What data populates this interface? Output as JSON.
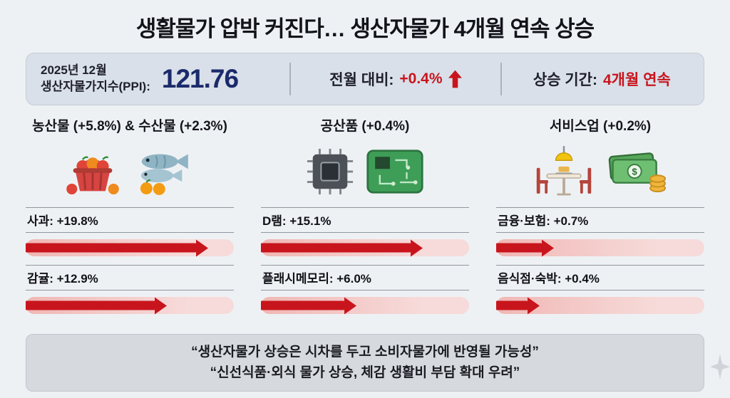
{
  "title": "생활물가 압박 커진다… 생산자물가 4개월 연속 상승",
  "colors": {
    "accent-red": "#c8151d",
    "ppi-navy": "#1b2a6b",
    "page-bg": "#eef1f4",
    "summary-bg": "#d9e0e9",
    "footer-bg": "#d6dade",
    "bar-track-start": "#f0b7b4",
    "bar-track-end": "#f6dbda"
  },
  "summary": {
    "ppi": {
      "line1": "2025년 12월",
      "line2": "생산자물가지수(PPI):",
      "value": "121.76"
    },
    "mom": {
      "label": "전월 대비:",
      "value": "+0.4%",
      "arrow": "up"
    },
    "period": {
      "label": "상승 기간:",
      "value": "4개월 연속"
    }
  },
  "columns": [
    {
      "header": "농산물 (+5.8%) & 수산물 (+2.3%)",
      "icons": [
        "fruit-basket",
        "fish-and-oranges"
      ],
      "stats": [
        {
          "label": "사과: +19.8%",
          "bar_pct": 82
        },
        {
          "label": "감귤: +12.9%",
          "bar_pct": 62
        }
      ]
    },
    {
      "header": "공산품 (+0.4%)",
      "icons": [
        "cpu-chip",
        "circuit-board"
      ],
      "stats": [
        {
          "label": "D램: +15.1%",
          "bar_pct": 72
        },
        {
          "label": "플래시메모리: +6.0%",
          "bar_pct": 40
        }
      ]
    },
    {
      "header": "서비스업 (+0.2%)",
      "icons": [
        "dining-table",
        "money-and-coins"
      ],
      "stats": [
        {
          "label": "금융·보험: +0.7%",
          "bar_pct": 22
        },
        {
          "label": "음식점·숙박: +0.4%",
          "bar_pct": 15
        }
      ]
    }
  ],
  "footer": {
    "line1": "“생산자물가 상승은 시차를 두고 소비자물가에 반영될 가능성”",
    "line2": "“신선식품·외식 물가 상승, 체감 생활비 부담 확대 우려”"
  },
  "chart_data": {
    "type": "bar",
    "title": "생산자물가 4개월 연속 상승 (2025년 12월)",
    "ppi_index": 121.76,
    "mom_change_pct": 0.4,
    "streak": "4개월 연속",
    "unit": "%",
    "series": [
      {
        "name": "농산물 & 수산물",
        "group_changes": {
          "농산물": 5.8,
          "수산물": 2.3
        },
        "categories": [
          "사과",
          "감귤"
        ],
        "values": [
          19.8,
          12.9
        ]
      },
      {
        "name": "공산품",
        "group_changes": {
          "공산품": 0.4
        },
        "categories": [
          "D램",
          "플래시메모리"
        ],
        "values": [
          15.1,
          6.0
        ]
      },
      {
        "name": "서비스업",
        "group_changes": {
          "서비스업": 0.2
        },
        "categories": [
          "금융·보험",
          "음식점·숙박"
        ],
        "values": [
          0.7,
          0.4
        ]
      }
    ],
    "notes": [
      "생산자물가 상승은 시차를 두고 소비자물가에 반영될 가능성",
      "신선식품·외식 물가 상승, 체감 생활비 부담 확대 우려"
    ]
  }
}
